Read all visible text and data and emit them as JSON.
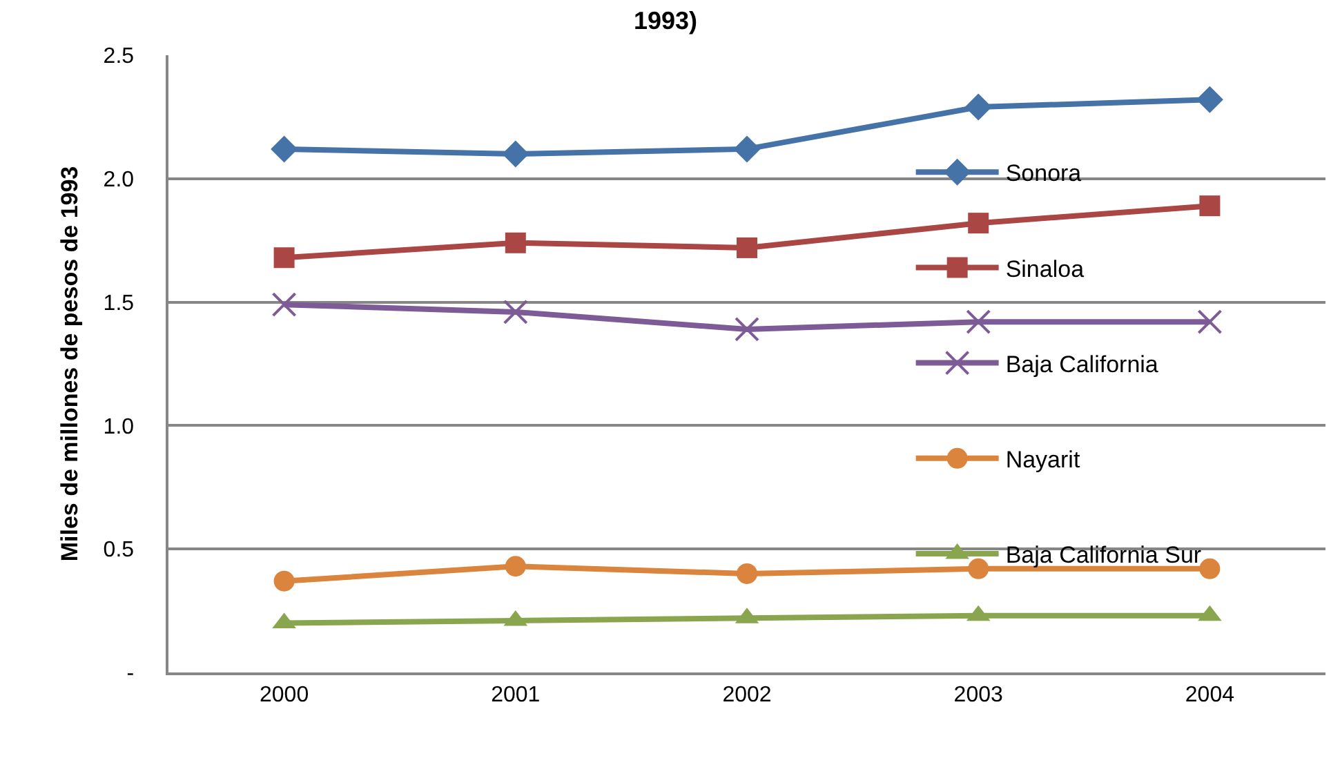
{
  "chart_data": {
    "type": "line",
    "title": "1993)",
    "ylabel": "Miles de millones de pesos de 1993",
    "categories": [
      "2000",
      "2001",
      "2002",
      "2003",
      "2004"
    ],
    "series": [
      {
        "name": "Sonora",
        "color": "#4572a7",
        "marker": "diamond",
        "values": [
          2.12,
          2.1,
          2.12,
          2.29,
          2.32
        ]
      },
      {
        "name": "Sinaloa",
        "color": "#aa4643",
        "marker": "square",
        "values": [
          1.68,
          1.74,
          1.72,
          1.82,
          1.89
        ]
      },
      {
        "name": "Baja California",
        "color": "#7c5b96",
        "marker": "cross",
        "values": [
          1.49,
          1.46,
          1.39,
          1.42,
          1.42
        ]
      },
      {
        "name": "Nayarit",
        "color": "#db843d",
        "marker": "circle",
        "values": [
          0.37,
          0.43,
          0.4,
          0.42,
          0.42
        ]
      },
      {
        "name": "Baja California Sur",
        "color": "#89a54e",
        "marker": "triangle",
        "values": [
          0.2,
          0.21,
          0.22,
          0.23,
          0.23
        ]
      }
    ],
    "ylim": [
      0,
      2.5
    ],
    "yticks": [
      {
        "value": 0,
        "label": "-"
      },
      0.5,
      {
        "value": 1,
        "label": "1.0"
      },
      1.5,
      {
        "value": 2,
        "label": "2.0"
      },
      2.5
    ],
    "grid": "y",
    "legend": "right",
    "line_style": "solid"
  }
}
